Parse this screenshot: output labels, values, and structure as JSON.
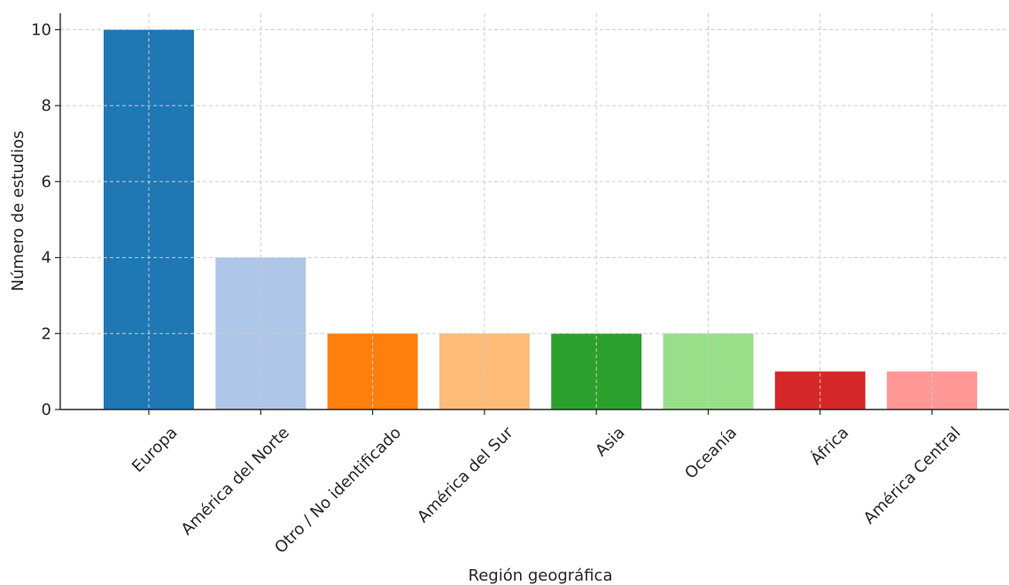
{
  "chart_data": {
    "type": "bar",
    "title": "",
    "xlabel": "Región geográfica",
    "ylabel": "Número de estudios",
    "categories": [
      "Europa",
      "América del Norte",
      "Otro / No identificado",
      "América del Sur",
      "Asia",
      "Oceanía",
      "África",
      "América Central"
    ],
    "values": [
      10,
      4,
      2,
      2,
      2,
      2,
      1,
      1
    ],
    "colors": [
      "#1f77b4",
      "#aec7e8",
      "#ff7f0e",
      "#ffbb78",
      "#2ca02c",
      "#98df8a",
      "#d62728",
      "#ff9896"
    ],
    "yticks": [
      0,
      2,
      4,
      6,
      8,
      10
    ],
    "ylim": [
      0,
      10.43
    ],
    "grid": true,
    "legend": "none"
  }
}
